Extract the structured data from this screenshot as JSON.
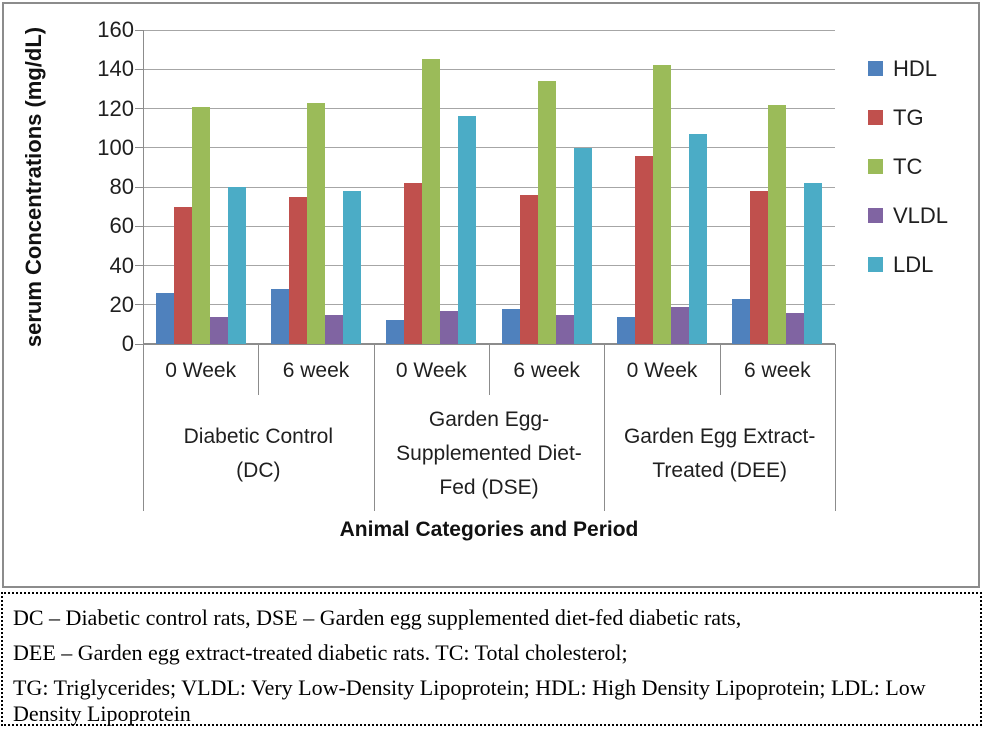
{
  "chart_data": {
    "type": "bar",
    "ylabel": "serum Concentrations (mg/dL)",
    "xlabel": "Animal Categories and Period",
    "ylim": [
      0,
      160
    ],
    "yticks": [
      0,
      20,
      40,
      60,
      80,
      100,
      120,
      140,
      160
    ],
    "grid": true,
    "legend_position": "right",
    "categories": [
      "0 Week",
      "6 week",
      "0 Week",
      "6 week",
      "0 Week",
      "6 week"
    ],
    "groups": [
      {
        "label_lines": [
          "Diabetic Control",
          "(DC)"
        ]
      },
      {
        "label_lines": [
          "Garden Egg-",
          "Supplemented Diet-",
          "Fed (DSE)"
        ]
      },
      {
        "label_lines": [
          "Garden Egg Extract-",
          "Treated (DEE)"
        ]
      }
    ],
    "series": [
      {
        "name": "HDL",
        "color": "#4F81BD",
        "values": [
          26,
          28,
          12,
          18,
          14,
          23
        ]
      },
      {
        "name": "TG",
        "color": "#C0504D",
        "values": [
          70,
          75,
          82,
          76,
          96,
          78
        ]
      },
      {
        "name": "TC",
        "color": "#9BBB59",
        "values": [
          121,
          123,
          145,
          134,
          142,
          122
        ]
      },
      {
        "name": "VLDL",
        "color": "#8064A2",
        "values": [
          14,
          15,
          17,
          15,
          19,
          16
        ]
      },
      {
        "name": "LDL",
        "color": "#4BACC6",
        "values": [
          80,
          78,
          116,
          100,
          107,
          82
        ]
      }
    ]
  },
  "footnote": {
    "lines": [
      "DC – Diabetic control rats, DSE – Garden egg supplemented diet-fed diabetic rats,",
      "DEE – Garden egg extract-treated diabetic rats. TC: Total cholesterol;",
      "TG: Triglycerides; VLDL: Very Low-Density Lipoprotein; HDL: High Density Lipoprotein; LDL: Low Density Lipoprotein"
    ]
  }
}
